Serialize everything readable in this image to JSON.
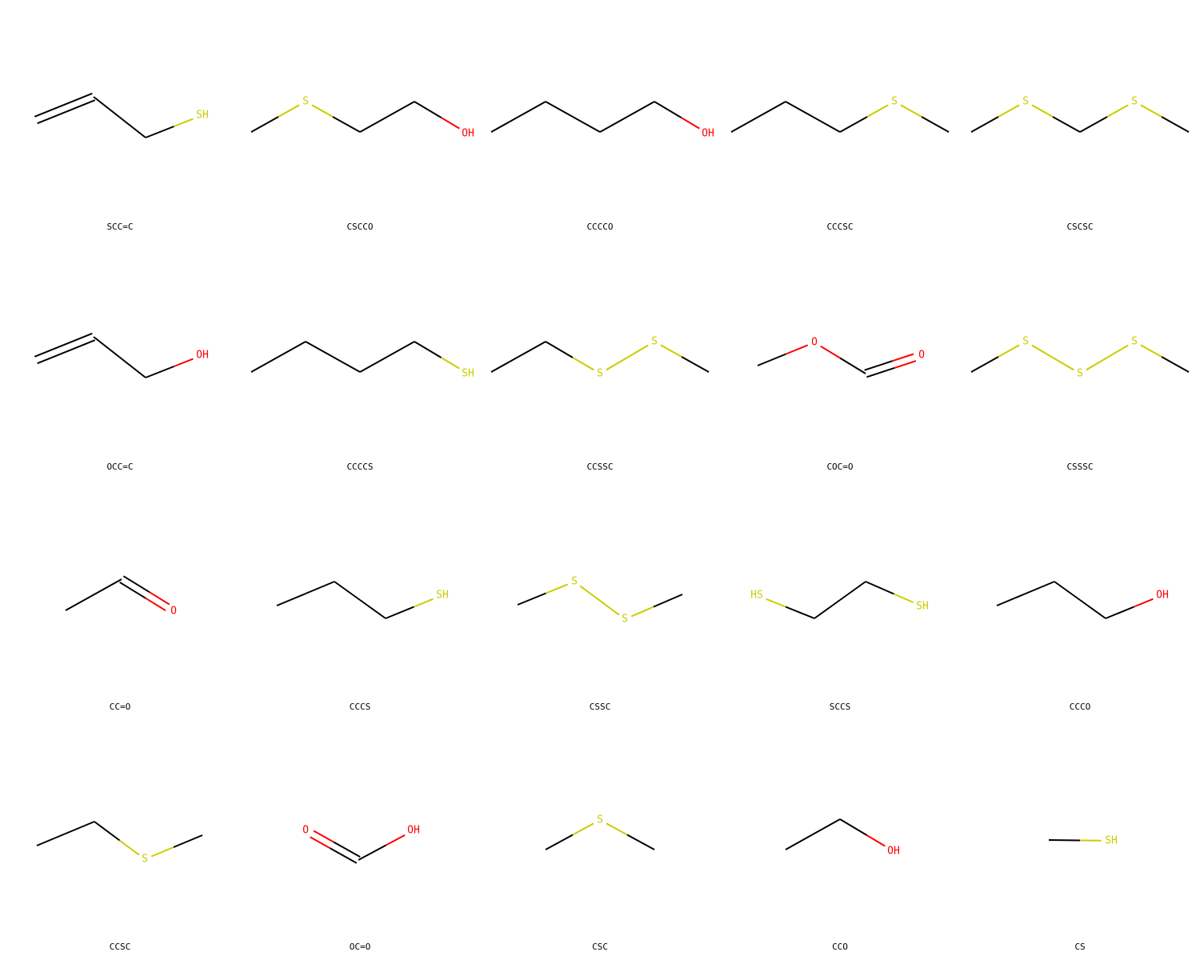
{
  "colors": {
    "C": "#000000",
    "S": "#cccc00",
    "O": "#ff0000",
    "background": "#ffffff"
  },
  "molecules": [
    {
      "smiles": "SCC=C",
      "atoms": [
        {
          "el": "C",
          "p": [
            45,
            150
          ]
        },
        {
          "el": "C",
          "p": [
            117,
            121
          ]
        },
        {
          "el": "C",
          "p": [
            182,
            172
          ]
        },
        {
          "el": "S",
          "label": "SH",
          "p": [
            253,
            144
          ]
        }
      ],
      "bonds": [
        [
          0,
          1,
          2
        ],
        [
          1,
          2,
          1
        ],
        [
          2,
          3,
          1
        ]
      ]
    },
    {
      "smiles": "CSCCO",
      "atoms": [
        {
          "el": "C",
          "p": [
            314,
            165
          ]
        },
        {
          "el": "S",
          "label": "S",
          "p": [
            382,
            127
          ]
        },
        {
          "el": "C",
          "p": [
            450,
            165
          ]
        },
        {
          "el": "C",
          "p": [
            518,
            127
          ]
        },
        {
          "el": "O",
          "label": "OH",
          "p": [
            585,
            167
          ]
        }
      ],
      "bonds": [
        [
          0,
          1,
          1
        ],
        [
          1,
          2,
          1
        ],
        [
          2,
          3,
          1
        ],
        [
          3,
          4,
          1
        ]
      ]
    },
    {
      "smiles": "CCCCO",
      "atoms": [
        {
          "el": "C",
          "p": [
            614,
            165
          ]
        },
        {
          "el": "C",
          "p": [
            682,
            127
          ]
        },
        {
          "el": "C",
          "p": [
            750,
            165
          ]
        },
        {
          "el": "C",
          "p": [
            818,
            127
          ]
        },
        {
          "el": "O",
          "label": "OH",
          "p": [
            885,
            167
          ]
        }
      ],
      "bonds": [
        [
          0,
          1,
          1
        ],
        [
          1,
          2,
          1
        ],
        [
          2,
          3,
          1
        ],
        [
          3,
          4,
          1
        ]
      ]
    },
    {
      "smiles": "CCCSC",
      "atoms": [
        {
          "el": "C",
          "p": [
            914,
            165
          ]
        },
        {
          "el": "C",
          "p": [
            982,
            127
          ]
        },
        {
          "el": "C",
          "p": [
            1050,
            165
          ]
        },
        {
          "el": "S",
          "label": "S",
          "p": [
            1118,
            127
          ]
        },
        {
          "el": "C",
          "p": [
            1186,
            165
          ]
        }
      ],
      "bonds": [
        [
          0,
          1,
          1
        ],
        [
          1,
          2,
          1
        ],
        [
          2,
          3,
          1
        ],
        [
          3,
          4,
          1
        ]
      ]
    },
    {
      "smiles": "CSCSC",
      "atoms": [
        {
          "el": "C",
          "p": [
            1214,
            165
          ]
        },
        {
          "el": "S",
          "label": "S",
          "p": [
            1282,
            127
          ]
        },
        {
          "el": "C",
          "p": [
            1350,
            165
          ]
        },
        {
          "el": "S",
          "label": "S",
          "p": [
            1418,
            127
          ]
        },
        {
          "el": "C",
          "p": [
            1486,
            165
          ]
        }
      ],
      "bonds": [
        [
          0,
          1,
          1
        ],
        [
          1,
          2,
          1
        ],
        [
          2,
          3,
          1
        ],
        [
          3,
          4,
          1
        ]
      ]
    },
    {
      "smiles": "OCC=C",
      "atoms": [
        {
          "el": "C",
          "p": [
            45,
            450
          ]
        },
        {
          "el": "C",
          "p": [
            117,
            421
          ]
        },
        {
          "el": "C",
          "p": [
            182,
            472
          ]
        },
        {
          "el": "O",
          "label": "OH",
          "p": [
            253,
            444
          ]
        }
      ],
      "bonds": [
        [
          0,
          1,
          2
        ],
        [
          1,
          2,
          1
        ],
        [
          2,
          3,
          1
        ]
      ]
    },
    {
      "smiles": "CCCCS",
      "atoms": [
        {
          "el": "C",
          "p": [
            314,
            465
          ]
        },
        {
          "el": "C",
          "p": [
            382,
            427
          ]
        },
        {
          "el": "C",
          "p": [
            450,
            465
          ]
        },
        {
          "el": "C",
          "p": [
            518,
            427
          ]
        },
        {
          "el": "S",
          "label": "SH",
          "p": [
            585,
            467
          ]
        }
      ],
      "bonds": [
        [
          0,
          1,
          1
        ],
        [
          1,
          2,
          1
        ],
        [
          2,
          3,
          1
        ],
        [
          3,
          4,
          1
        ]
      ]
    },
    {
      "smiles": "CCSSC",
      "atoms": [
        {
          "el": "C",
          "p": [
            614,
            465
          ]
        },
        {
          "el": "C",
          "p": [
            682,
            427
          ]
        },
        {
          "el": "S",
          "label": "S",
          "p": [
            750,
            467
          ]
        },
        {
          "el": "S",
          "label": "S",
          "p": [
            818,
            427
          ]
        },
        {
          "el": "C",
          "p": [
            886,
            465
          ]
        }
      ],
      "bonds": [
        [
          0,
          1,
          1
        ],
        [
          1,
          2,
          1
        ],
        [
          2,
          3,
          1
        ],
        [
          3,
          4,
          1
        ]
      ]
    },
    {
      "smiles": "COC=O",
      "atoms": [
        {
          "el": "C",
          "p": [
            947,
            457
          ]
        },
        {
          "el": "O",
          "label": "O",
          "p": [
            1018,
            428
          ]
        },
        {
          "el": "C",
          "p": [
            1082,
            467
          ]
        },
        {
          "el": "O",
          "label": "O",
          "p": [
            1152,
            444
          ]
        }
      ],
      "bonds": [
        [
          0,
          1,
          1
        ],
        [
          1,
          2,
          1
        ],
        [
          2,
          3,
          2
        ]
      ]
    },
    {
      "smiles": "CSSSC",
      "atoms": [
        {
          "el": "C",
          "p": [
            1214,
            465
          ]
        },
        {
          "el": "S",
          "label": "S",
          "p": [
            1282,
            427
          ]
        },
        {
          "el": "S",
          "label": "S",
          "p": [
            1350,
            467
          ]
        },
        {
          "el": "S",
          "label": "S",
          "p": [
            1418,
            427
          ]
        },
        {
          "el": "C",
          "p": [
            1486,
            465
          ]
        }
      ],
      "bonds": [
        [
          0,
          1,
          1
        ],
        [
          1,
          2,
          1
        ],
        [
          2,
          3,
          1
        ],
        [
          3,
          4,
          1
        ]
      ]
    },
    {
      "smiles": "CC=O",
      "atoms": [
        {
          "el": "C",
          "p": [
            82,
            763
          ]
        },
        {
          "el": "C",
          "p": [
            152,
            724
          ]
        },
        {
          "el": "O",
          "label": "O",
          "p": [
            217,
            764
          ]
        }
      ],
      "bonds": [
        [
          0,
          1,
          1
        ],
        [
          1,
          2,
          2
        ]
      ]
    },
    {
      "smiles": "CCCS",
      "atoms": [
        {
          "el": "C",
          "p": [
            346,
            757
          ]
        },
        {
          "el": "C",
          "p": [
            418,
            727
          ]
        },
        {
          "el": "C",
          "p": [
            482,
            773
          ]
        },
        {
          "el": "S",
          "label": "SH",
          "p": [
            553,
            744
          ]
        }
      ],
      "bonds": [
        [
          0,
          1,
          1
        ],
        [
          1,
          2,
          1
        ],
        [
          2,
          3,
          1
        ]
      ]
    },
    {
      "smiles": "CSSC",
      "atoms": [
        {
          "el": "C",
          "p": [
            647,
            756
          ]
        },
        {
          "el": "S",
          "label": "S",
          "p": [
            718,
            727
          ]
        },
        {
          "el": "S",
          "label": "S",
          "p": [
            781,
            774
          ]
        },
        {
          "el": "C",
          "p": [
            853,
            743
          ]
        }
      ],
      "bonds": [
        [
          0,
          1,
          1
        ],
        [
          1,
          2,
          1
        ],
        [
          2,
          3,
          1
        ]
      ]
    },
    {
      "smiles": "SCCS",
      "atoms": [
        {
          "el": "S",
          "label": "HS",
          "p": [
            946,
            744
          ]
        },
        {
          "el": "C",
          "p": [
            1018,
            773
          ]
        },
        {
          "el": "C",
          "p": [
            1082,
            727
          ]
        },
        {
          "el": "S",
          "label": "SH",
          "p": [
            1153,
            758
          ]
        }
      ],
      "bonds": [
        [
          0,
          1,
          1
        ],
        [
          1,
          2,
          1
        ],
        [
          2,
          3,
          1
        ]
      ]
    },
    {
      "smiles": "CCCO",
      "atoms": [
        {
          "el": "C",
          "p": [
            1246,
            757
          ]
        },
        {
          "el": "C",
          "p": [
            1318,
            727
          ]
        },
        {
          "el": "C",
          "p": [
            1382,
            773
          ]
        },
        {
          "el": "O",
          "label": "OH",
          "p": [
            1453,
            744
          ]
        }
      ],
      "bonds": [
        [
          0,
          1,
          1
        ],
        [
          1,
          2,
          1
        ],
        [
          2,
          3,
          1
        ]
      ]
    },
    {
      "smiles": "CCSC",
      "atoms": [
        {
          "el": "C",
          "p": [
            46,
            1057
          ]
        },
        {
          "el": "C",
          "p": [
            118,
            1027
          ]
        },
        {
          "el": "S",
          "label": "S",
          "p": [
            181,
            1074
          ]
        },
        {
          "el": "C",
          "p": [
            253,
            1044
          ]
        }
      ],
      "bonds": [
        [
          0,
          1,
          1
        ],
        [
          1,
          2,
          1
        ],
        [
          2,
          3,
          1
        ]
      ]
    },
    {
      "smiles": "OC=O",
      "atoms": [
        {
          "el": "O",
          "label": "O",
          "p": [
            382,
            1038
          ]
        },
        {
          "el": "C",
          "p": [
            448,
            1075
          ]
        },
        {
          "el": "O",
          "label": "OH",
          "p": [
            517,
            1038
          ]
        }
      ],
      "bonds": [
        [
          0,
          1,
          2
        ],
        [
          1,
          2,
          1
        ]
      ]
    },
    {
      "smiles": "CSC",
      "atoms": [
        {
          "el": "C",
          "p": [
            682,
            1062
          ]
        },
        {
          "el": "S",
          "label": "S",
          "p": [
            750,
            1025
          ]
        },
        {
          "el": "C",
          "p": [
            818,
            1062
          ]
        }
      ],
      "bonds": [
        [
          0,
          1,
          1
        ],
        [
          1,
          2,
          1
        ]
      ]
    },
    {
      "smiles": "CCO",
      "atoms": [
        {
          "el": "C",
          "p": [
            982,
            1062
          ]
        },
        {
          "el": "C",
          "p": [
            1050,
            1024
          ]
        },
        {
          "el": "O",
          "label": "OH",
          "p": [
            1117,
            1064
          ]
        }
      ],
      "bonds": [
        [
          0,
          1,
          1
        ],
        [
          1,
          2,
          1
        ]
      ]
    },
    {
      "smiles": "CS",
      "atoms": [
        {
          "el": "C",
          "p": [
            1311,
            1050
          ]
        },
        {
          "el": "S",
          "label": "SH",
          "p": [
            1389,
            1051
          ]
        }
      ],
      "bonds": [
        [
          0,
          1,
          1
        ]
      ]
    }
  ]
}
